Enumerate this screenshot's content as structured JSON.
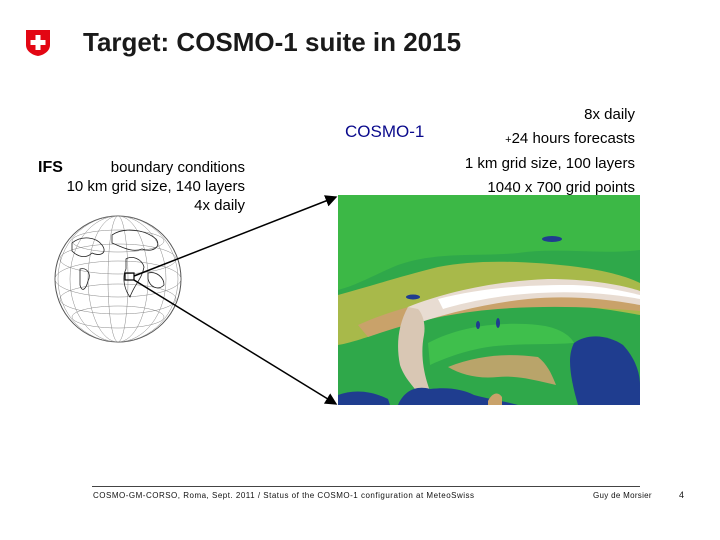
{
  "slide": {
    "title": "Target: COSMO-1 suite in 2015",
    "cosmo_label": "COSMO-1",
    "cosmo_specs": {
      "line1": "8x daily",
      "line2_prefix": "+",
      "line2_rest": "24 hours forecasts",
      "line3": "1 km grid size, 100 layers",
      "line4": "1040 x 700 grid points"
    },
    "ifs": {
      "name": "IFS",
      "line1": "boundary conditions",
      "line2": "10 km grid size, 140 layers",
      "line3": "4x daily"
    },
    "footer": {
      "text": "COSMO-GM-CORSO, Roma, Sept. 2011 / Status of the COSMO-1 configuration at MeteoSwiss",
      "author": "Guy de Morsier",
      "page": "4"
    }
  },
  "icons": [
    "swiss-flag-icon",
    "globe-image",
    "alps-topography-map"
  ],
  "colors": {
    "title_text": "#1a1a1a",
    "cosmo_label": "#0a0a8c",
    "flag_red": "#e30613",
    "sea": "#1f3d8f",
    "land": "#2fa84a"
  }
}
